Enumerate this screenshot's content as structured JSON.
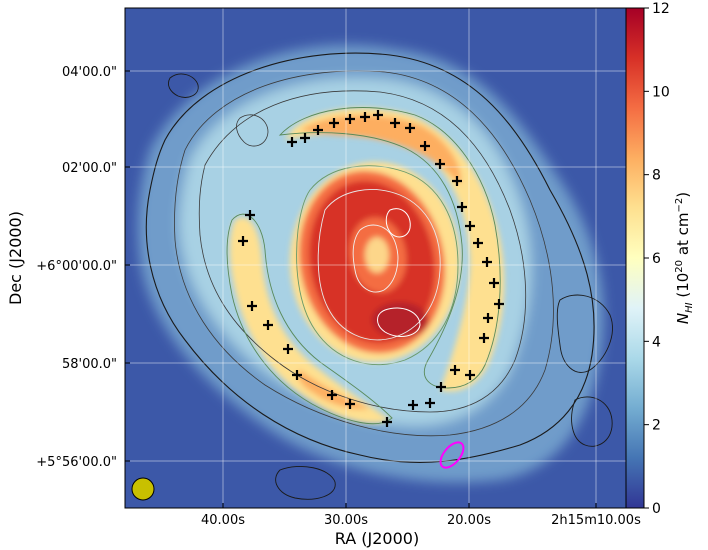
{
  "chart_data": {
    "type": "heatmap",
    "title": "",
    "xlabel": "RA (J2000)",
    "ylabel": "Dec (J2000)",
    "x_tick_labels": [
      "40.00s",
      "30.00s",
      "20.00s",
      "2h15m10.00s"
    ],
    "y_tick_labels": [
      "04'00.0\"",
      "02'00.0\"",
      "+6°00'00.0\"",
      "58'00.0\"",
      "+5°56'00.0\""
    ],
    "colorbar": {
      "label_main": "N",
      "label_sub": "HI",
      "label_rest": " (10",
      "label_exp": "20",
      "label_unit": " at cm",
      "label_unit_exp": "−2",
      "label_close": ")",
      "range": [
        0,
        12
      ],
      "ticks": [
        0,
        2,
        4,
        6,
        8,
        10,
        12
      ],
      "colormap": [
        "#313695",
        "#4575b4",
        "#74add1",
        "#abd9e9",
        "#e0f3f8",
        "#ffffbf",
        "#fee090",
        "#fdae61",
        "#f46d43",
        "#d73027",
        "#a50026"
      ]
    },
    "grid": true,
    "annotations": {
      "beam": {
        "color": "#c8c000",
        "shape": "filled circle"
      },
      "ellipse": {
        "color": "#ff00ff",
        "shape": "open ellipse"
      },
      "markers": {
        "symbol": "plus",
        "color": "#000000",
        "count": 35
      }
    }
  }
}
